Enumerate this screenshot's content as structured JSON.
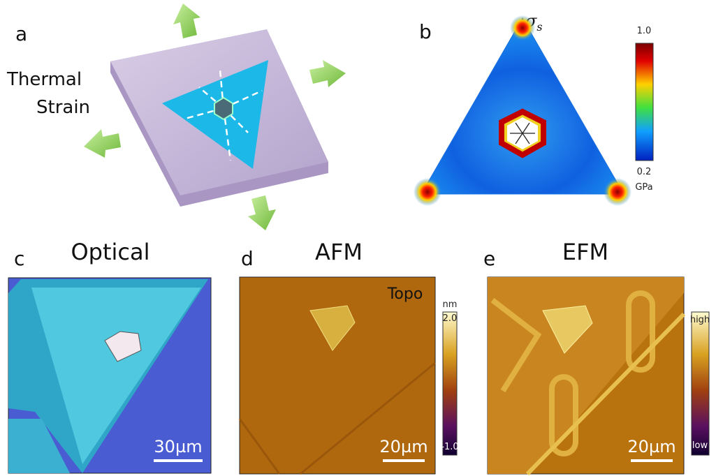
{
  "panel_a": {
    "label": "a",
    "caption_line1": "Thermal",
    "caption_line2": "Strain"
  },
  "panel_b": {
    "label": "b",
    "symbol": "σ",
    "symbol_sub": "s",
    "colorbar_max": "1.0",
    "colorbar_min": "0.2",
    "colorbar_unit": "GPa"
  },
  "panel_c": {
    "label": "c",
    "title": "Optical",
    "scale_bar": "30µm"
  },
  "panel_d": {
    "label": "d",
    "title": "AFM",
    "inset": "Topo",
    "colorbar_unit": "nm",
    "colorbar_max": "2.0",
    "colorbar_min": "-1.0",
    "scale_bar": "20µm"
  },
  "panel_e": {
    "label": "e",
    "title": "EFM",
    "colorbar_max": "high",
    "colorbar_min": "low",
    "scale_bar": "20µm"
  }
}
